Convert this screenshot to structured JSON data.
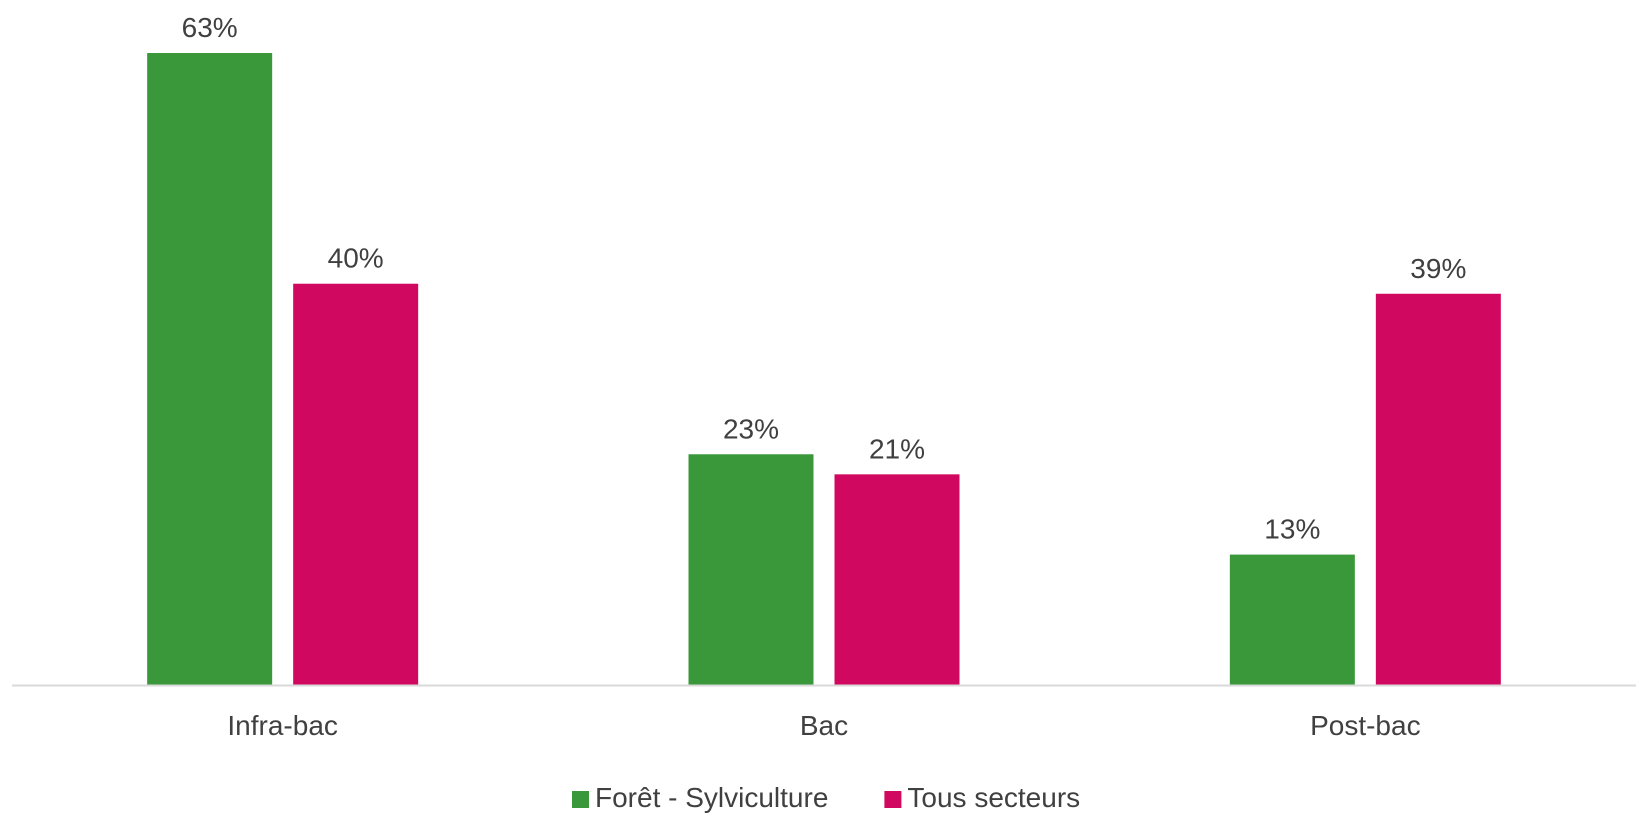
{
  "chart_data": {
    "type": "bar",
    "title": "",
    "xlabel": "",
    "ylabel": "",
    "categories": [
      "Infra-bac",
      "Bac",
      "Post-bac"
    ],
    "series": [
      {
        "name": "Forêt - Sylviculture",
        "color": "#3a983a",
        "values": [
          63,
          23,
          13
        ],
        "labels": [
          "63%",
          "23%",
          "13%"
        ]
      },
      {
        "name": "Tous secteurs",
        "color": "#d0085f",
        "values": [
          40,
          21,
          39
        ],
        "labels": [
          "40%",
          "21%",
          "39%"
        ]
      }
    ],
    "ylim": [
      0,
      63
    ],
    "unit": "%",
    "grid": false,
    "legend_position": "bottom",
    "axis_color": "#d9d9d9",
    "label_color": "#404040"
  }
}
